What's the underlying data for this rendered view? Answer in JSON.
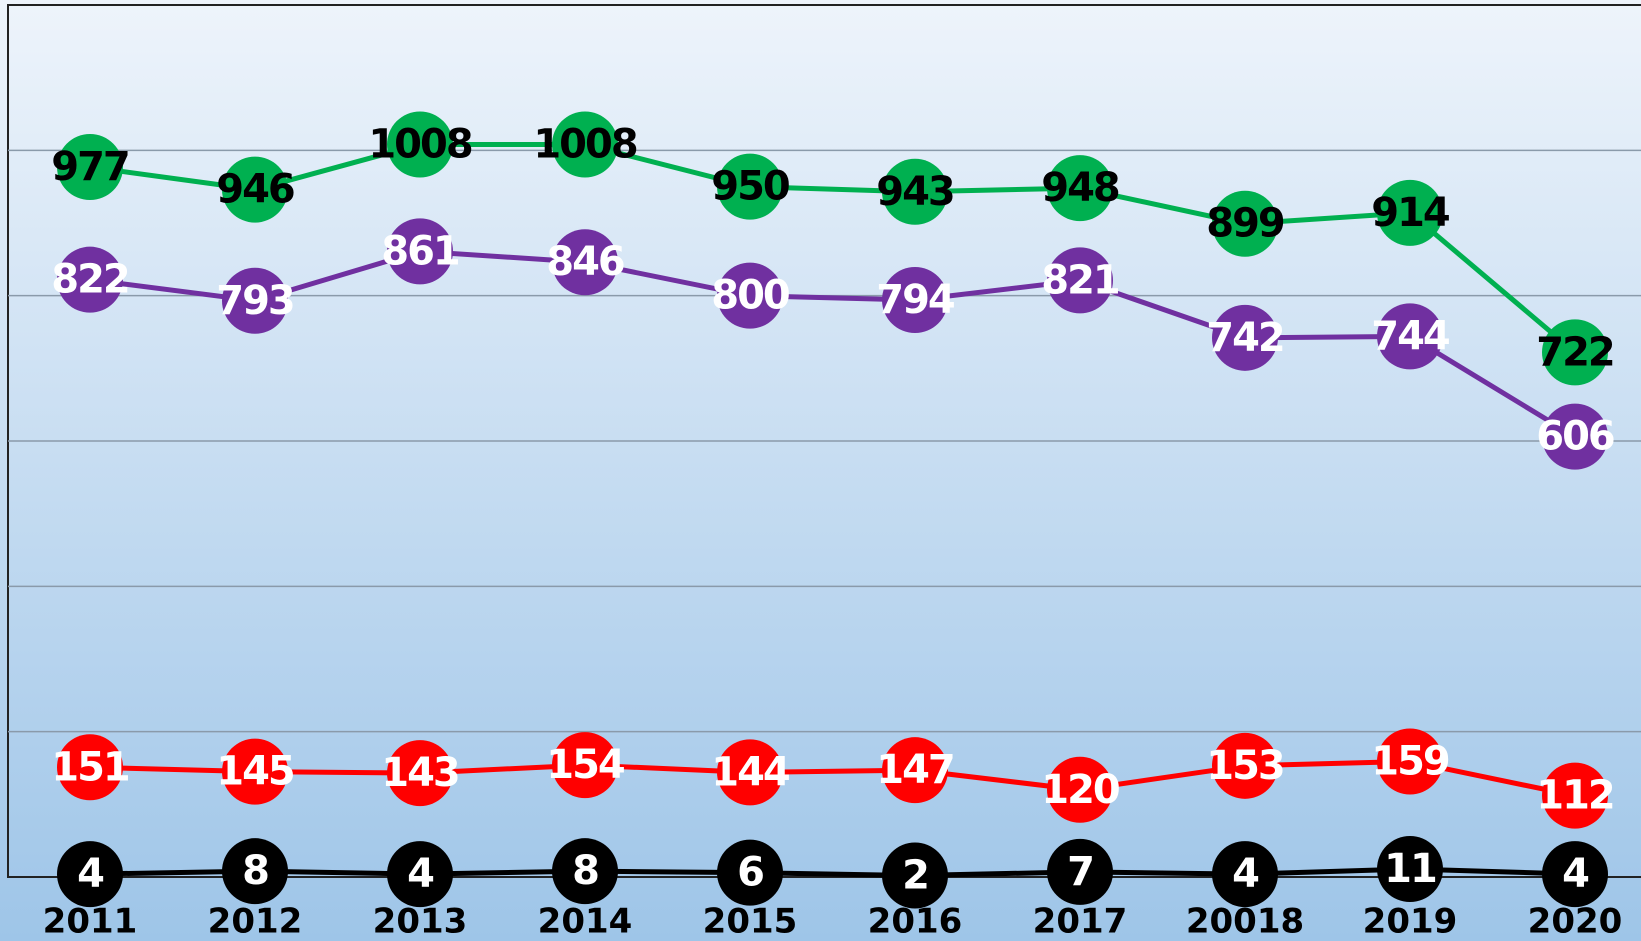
{
  "chart_data": {
    "type": "line",
    "categories": [
      "2011",
      "2012",
      "2013",
      "2014",
      "2015",
      "2016",
      "2017",
      "20018",
      "2019",
      "2020"
    ],
    "series": [
      {
        "color": "#00b050",
        "label_color": "#000000",
        "values": [
          977,
          946,
          1008,
          1008,
          950,
          943,
          948,
          899,
          914,
          722
        ]
      },
      {
        "color": "#7030a0",
        "label_color": "#ffffff",
        "values": [
          822,
          793,
          861,
          846,
          800,
          794,
          821,
          742,
          744,
          606
        ]
      },
      {
        "color": "#ff0000",
        "label_color": "#ffffff",
        "values": [
          151,
          145,
          143,
          154,
          144,
          147,
          120,
          153,
          159,
          112
        ]
      },
      {
        "color": "#000000",
        "label_color": "#ffffff",
        "values": [
          4,
          8,
          4,
          8,
          6,
          2,
          7,
          4,
          11,
          4
        ]
      }
    ],
    "ylim": [
      0,
      1200
    ],
    "yticks": [
      200,
      400,
      600,
      800,
      1000
    ],
    "grid": true
  }
}
